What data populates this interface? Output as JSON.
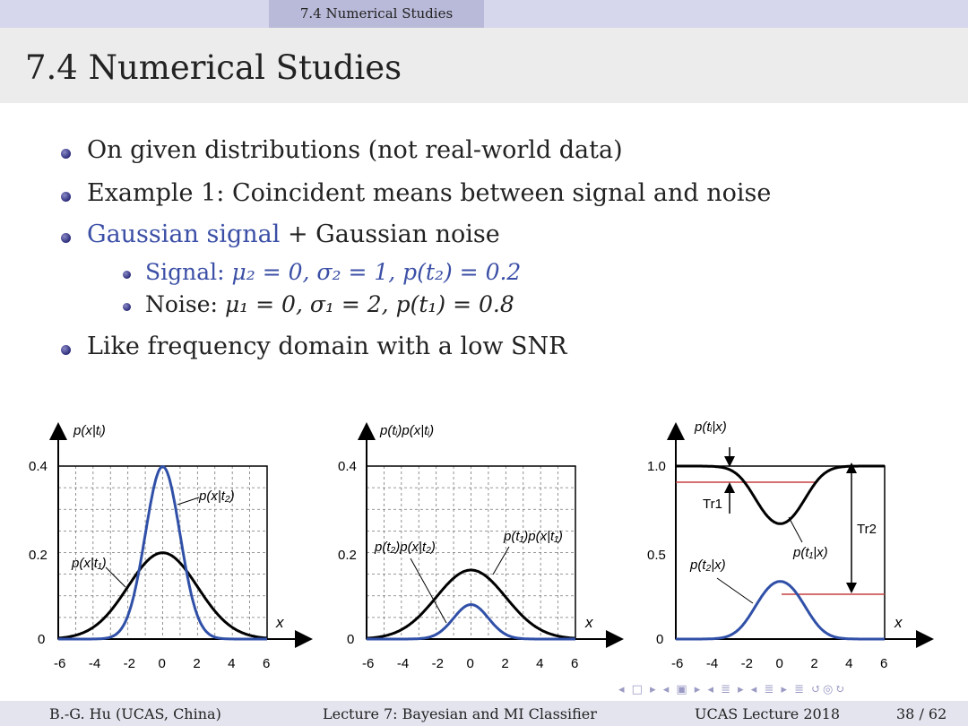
{
  "header": {
    "section": "7.4 Numerical Studies"
  },
  "slide": {
    "title": "7.4 Numerical Studies",
    "bullets": [
      "On given distributions (not real-world data)",
      "Example 1:  Coincident means between signal and noise"
    ],
    "bullet3": {
      "highlight": "Gaussian signal",
      "rest": " + Gaussian noise"
    },
    "sub": {
      "signal": {
        "label": "Signal:",
        "text": "μ₂ = 0,  σ₂ = 1,  p(t₂) = 0.2"
      },
      "noise": {
        "label": "Noise:",
        "text": "μ₁ = 0,  σ₁ = 2,  p(t₁) = 0.8"
      }
    },
    "bullet4": "Like frequency domain with a low SNR"
  },
  "chart_data": [
    {
      "type": "line",
      "ylabel": "p(x|tᵢ)",
      "xlabel": "x",
      "xlim": [
        -6,
        6
      ],
      "ylim": [
        0,
        0.4
      ],
      "xticks": [
        "-6",
        "-4",
        "-2",
        "0",
        "2",
        "4",
        "6"
      ],
      "yticks": [
        "0",
        "0.2",
        "0.4"
      ],
      "grid": true,
      "series": [
        {
          "name": "p(x|t₁)",
          "color": "#000000",
          "mu": 0,
          "sigma": 2
        },
        {
          "name": "p(x|t₂)",
          "color": "#3050a8",
          "mu": 0,
          "sigma": 1
        }
      ]
    },
    {
      "type": "line",
      "ylabel": "p(tᵢ)p(x|tᵢ)",
      "xlabel": "x",
      "xlim": [
        -6,
        6
      ],
      "ylim": [
        0,
        0.4
      ],
      "xticks": [
        "-6",
        "-4",
        "-2",
        "0",
        "2",
        "4",
        "6"
      ],
      "yticks": [
        "0",
        "0.2",
        "0.4"
      ],
      "grid": true,
      "series": [
        {
          "name": "p(t₁)p(x|t₁)",
          "color": "#000000",
          "prior": 0.8,
          "mu": 0,
          "sigma": 2
        },
        {
          "name": "p(t₂)p(x|t₂)",
          "color": "#3050a8",
          "prior": 0.2,
          "mu": 0,
          "sigma": 1
        }
      ]
    },
    {
      "type": "line",
      "ylabel": "p(tᵢ|x)",
      "xlabel": "x",
      "xlim": [
        -6,
        6
      ],
      "ylim": [
        0,
        1.0
      ],
      "xticks": [
        "-6",
        "-4",
        "-2",
        "0",
        "2",
        "4",
        "6"
      ],
      "yticks": [
        "0",
        "0.5",
        "1.0"
      ],
      "grid": false,
      "series": [
        {
          "name": "p(t₁|x)",
          "color": "#000000"
        },
        {
          "name": "p(t₂|x)",
          "color": "#3050a8"
        }
      ],
      "annotations": [
        "Tr1",
        "Tr2"
      ]
    }
  ],
  "nav": {
    "icons": "◂ □ ▸  ◂ ▣ ▸  ◂ ≣ ▸  ◂ ≣ ▸   ≣   ↺◎↻"
  },
  "footer": {
    "author": "B.-G. Hu  (UCAS, China)",
    "lecture": "Lecture 7: Bayesian and MI Classifier",
    "course": "UCAS Lecture 2018",
    "page": "38 / 62"
  }
}
